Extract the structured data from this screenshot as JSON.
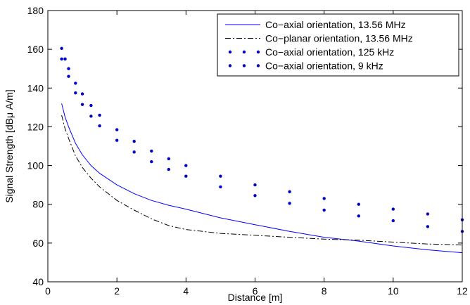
{
  "chart_data": {
    "type": "line",
    "title": "",
    "xlabel": "Distance [m]",
    "ylabel": "Signal Strength [dBμ A/m]",
    "xlim": [
      0,
      12
    ],
    "ylim": [
      40,
      180
    ],
    "xticks": [
      "0",
      "2",
      "4",
      "6",
      "8",
      "10",
      "12"
    ],
    "yticks": [
      "40",
      "60",
      "80",
      "100",
      "120",
      "140",
      "160",
      "180"
    ],
    "grid": false,
    "legend_position": "top-right",
    "series": [
      {
        "name": "Co−axial orientation, 13.56 MHz",
        "style": "solid",
        "color": "#0000ff",
        "x": [
          0.4,
          0.5,
          0.6,
          0.8,
          1.0,
          1.25,
          1.5,
          2.0,
          2.5,
          3.0,
          3.5,
          4.0,
          5.0,
          6.0,
          7.0,
          8.0,
          9.0,
          10.0,
          11.0,
          12.0
        ],
        "y": [
          132,
          125,
          120,
          111.5,
          105.5,
          100,
          96,
          90,
          85.5,
          82,
          79.5,
          77.5,
          73,
          69.5,
          66,
          63,
          61,
          58.5,
          56.5,
          55
        ]
      },
      {
        "name": "Co−planar orientation, 13.56 MHz",
        "style": "dashdot",
        "color": "#000000",
        "x": [
          0.4,
          0.5,
          0.6,
          0.8,
          1.0,
          1.25,
          1.5,
          2.0,
          2.5,
          3.0,
          3.5,
          4.0,
          5.0,
          6.0,
          7.0,
          8.0,
          9.0,
          10.0,
          11.0,
          12.0
        ],
        "y": [
          126,
          119,
          114,
          105,
          99,
          93.5,
          89,
          82,
          77,
          72.5,
          69,
          67,
          65,
          64,
          63,
          62,
          61.5,
          60.5,
          59.5,
          59
        ]
      },
      {
        "name": "Co−axial orientation, 125 kHz",
        "style": "dotted",
        "color": "#0000cc",
        "x": [
          0.4,
          0.5,
          0.6,
          0.8,
          1.0,
          1.25,
          1.5,
          2.0,
          2.5,
          3.0,
          3.5,
          4.0,
          5.0,
          6.0,
          7.0,
          8.0,
          9.0,
          10.0,
          11.0,
          12.0
        ],
        "y": [
          160.5,
          155,
          150,
          142.5,
          137,
          131,
          126,
          118.5,
          112.5,
          107.5,
          103.5,
          100,
          94.5,
          90,
          86.5,
          83,
          80,
          77.5,
          75,
          72
        ]
      },
      {
        "name": "Co−axial orientation, 9 kHz",
        "style": "dotted",
        "color": "#0000cc",
        "x": [
          0.4,
          0.5,
          0.6,
          0.8,
          1.0,
          1.25,
          1.5,
          2.0,
          2.5,
          3.0,
          3.5,
          4.0,
          5.0,
          6.0,
          7.0,
          8.0,
          9.0,
          10.0,
          11.0,
          12.0
        ],
        "y": [
          155,
          155,
          146,
          137.5,
          131.5,
          125.5,
          120.5,
          113,
          107,
          102,
          98,
          94.5,
          89,
          84.5,
          80.5,
          77,
          74,
          71.5,
          68.5,
          66
        ]
      }
    ]
  }
}
